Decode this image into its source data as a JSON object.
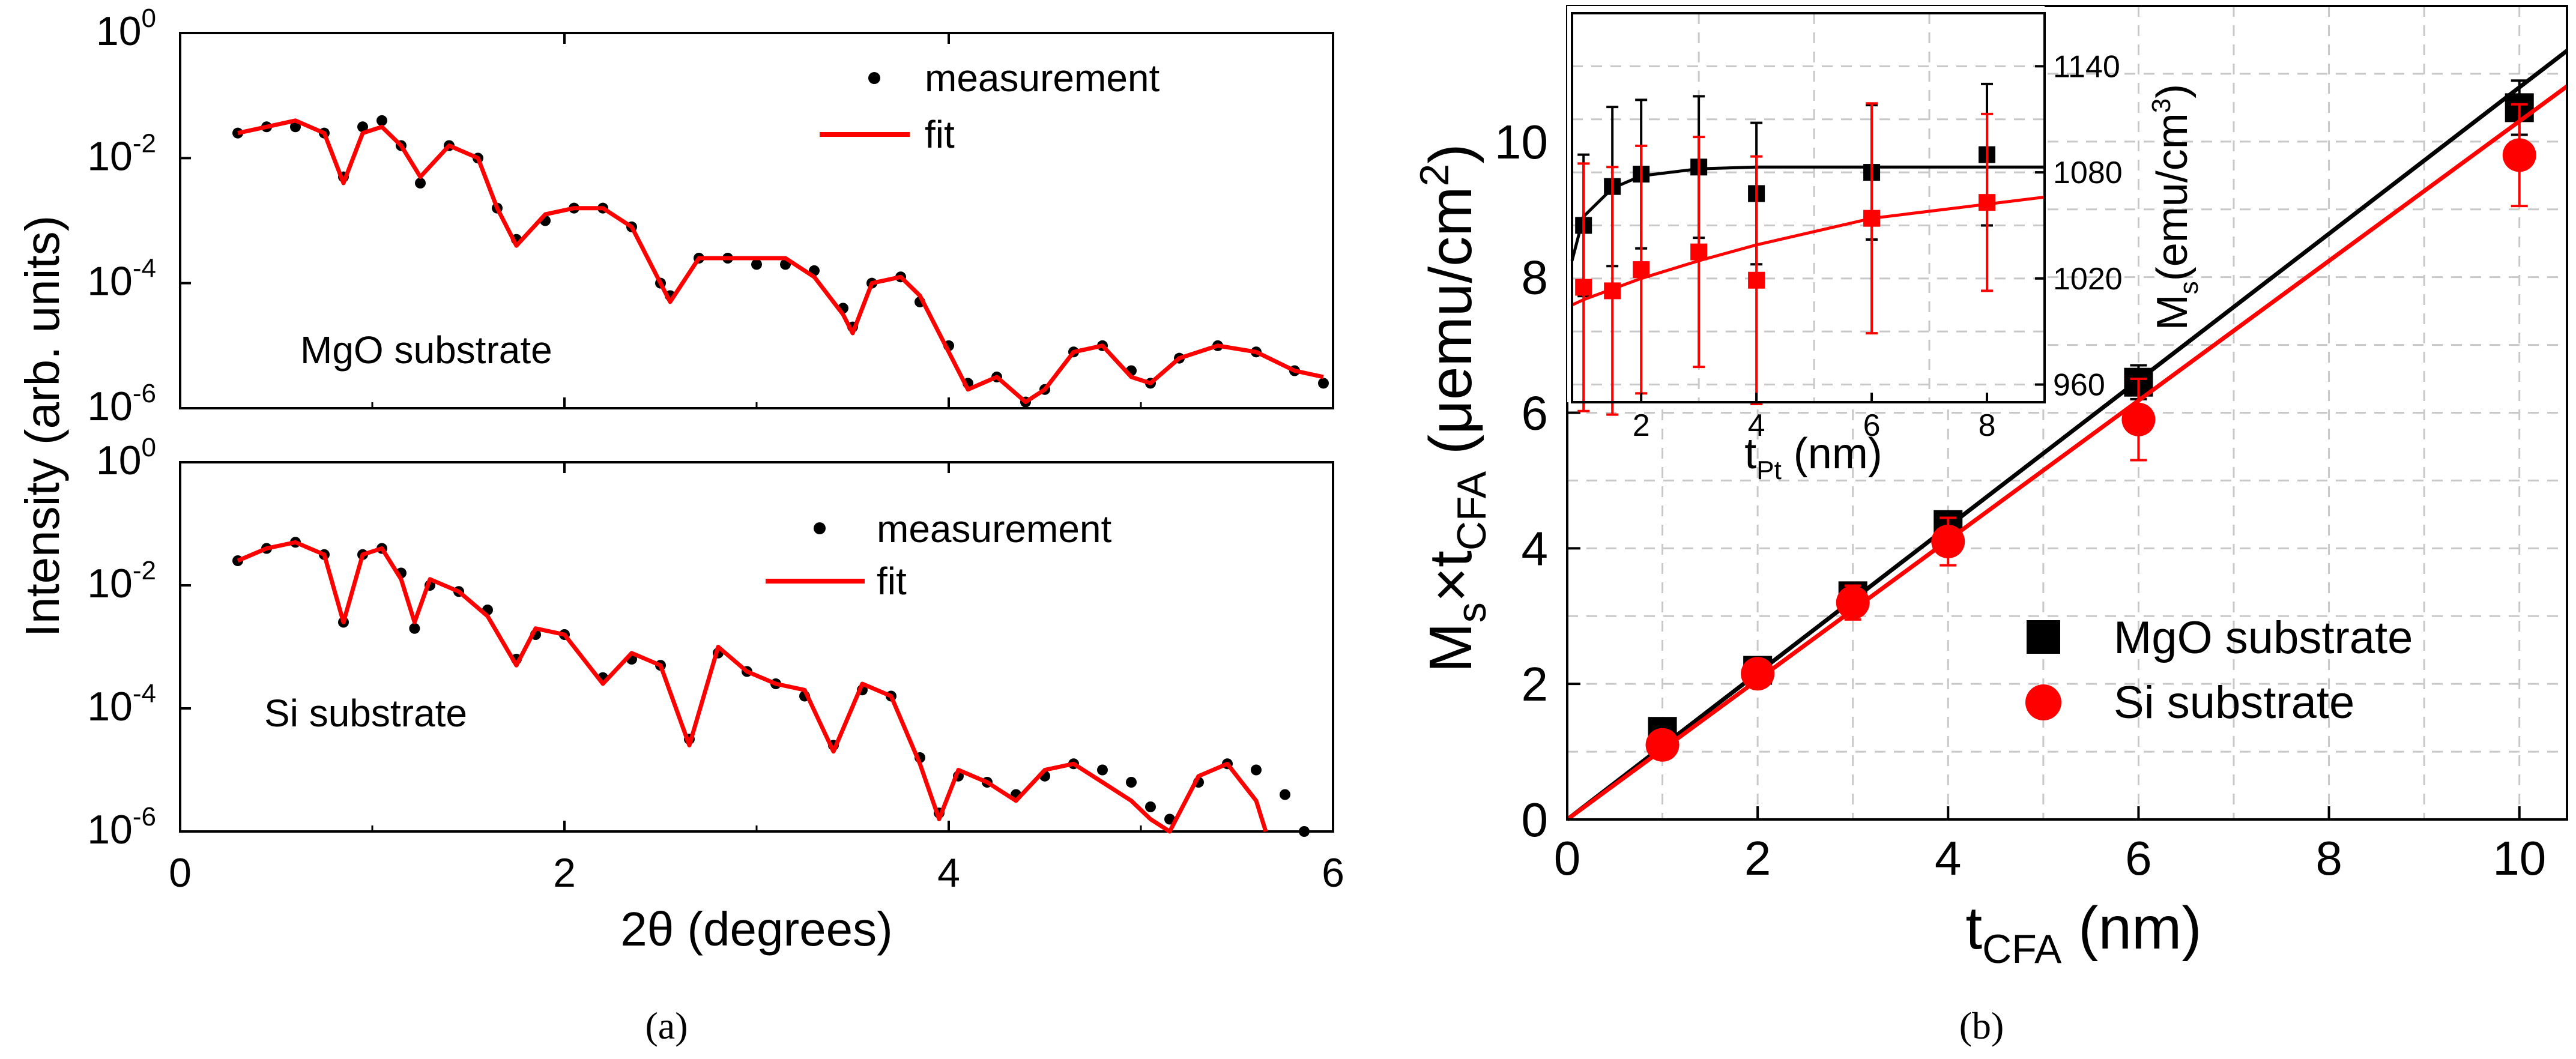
{
  "chart_data": [
    {
      "type": "line",
      "panel": "a-top",
      "title": "",
      "xlabel": "",
      "ylabel": "Intensity (arb. units)",
      "yscale": "log",
      "xlim": [
        0,
        6
      ],
      "ylim_exp": [
        -6,
        0
      ],
      "x_ticks": [
        "0",
        "2",
        "4",
        "6"
      ],
      "y_tick_mantissa": "10",
      "y_tick_exponents": [
        "0",
        "-2",
        "-4",
        "-6"
      ],
      "annotation": "MgO substrate",
      "legend": [
        "measurement",
        "fit"
      ],
      "legend_position": "top-right",
      "series": [
        {
          "name": "measurement",
          "style": "black dots",
          "x": [
            0.3,
            0.45,
            0.6,
            0.75,
            0.85,
            0.95,
            1.05,
            1.15,
            1.25,
            1.4,
            1.55,
            1.65,
            1.75,
            1.9,
            2.05,
            2.2,
            2.35,
            2.5,
            2.55,
            2.7,
            2.85,
            3.0,
            3.15,
            3.3,
            3.45,
            3.5,
            3.6,
            3.75,
            3.85,
            4.0,
            4.1,
            4.25,
            4.4,
            4.5,
            4.65,
            4.8,
            4.95,
            5.05,
            5.2,
            5.4,
            5.6,
            5.8,
            5.95
          ],
          "y_log10": [
            -1.6,
            -1.5,
            -1.5,
            -1.6,
            -2.3,
            -1.5,
            -1.4,
            -1.8,
            -2.4,
            -1.8,
            -2.0,
            -2.8,
            -3.3,
            -3.0,
            -2.8,
            -2.8,
            -3.1,
            -4.0,
            -4.2,
            -3.6,
            -3.6,
            -3.7,
            -3.7,
            -3.8,
            -4.4,
            -4.7,
            -4.0,
            -3.9,
            -4.3,
            -5.0,
            -5.6,
            -5.5,
            -5.9,
            -5.7,
            -5.1,
            -5.0,
            -5.4,
            -5.6,
            -5.2,
            -5.0,
            -5.1,
            -5.4,
            -5.6
          ]
        },
        {
          "name": "fit",
          "style": "red line",
          "x": [
            0.3,
            0.45,
            0.6,
            0.75,
            0.85,
            0.95,
            1.05,
            1.15,
            1.25,
            1.4,
            1.55,
            1.65,
            1.75,
            1.9,
            2.05,
            2.2,
            2.35,
            2.5,
            2.55,
            2.7,
            2.85,
            3.0,
            3.15,
            3.3,
            3.45,
            3.5,
            3.6,
            3.75,
            3.85,
            4.0,
            4.1,
            4.25,
            4.4,
            4.5,
            4.65,
            4.8,
            4.95,
            5.05,
            5.2,
            5.4,
            5.6,
            5.8,
            5.95
          ],
          "y_log10": [
            -1.6,
            -1.5,
            -1.4,
            -1.6,
            -2.4,
            -1.6,
            -1.5,
            -1.8,
            -2.3,
            -1.8,
            -2.0,
            -2.8,
            -3.4,
            -2.9,
            -2.8,
            -2.8,
            -3.1,
            -4.0,
            -4.3,
            -3.6,
            -3.6,
            -3.6,
            -3.6,
            -3.9,
            -4.5,
            -4.8,
            -4.0,
            -3.9,
            -4.2,
            -5.1,
            -5.7,
            -5.5,
            -5.9,
            -5.7,
            -5.1,
            -5.0,
            -5.5,
            -5.6,
            -5.2,
            -5.0,
            -5.1,
            -5.4,
            -5.5
          ]
        }
      ]
    },
    {
      "type": "line",
      "panel": "a-bottom",
      "title": "",
      "xlabel": "2θ (degrees)",
      "ylabel": "Intensity (arb. units)",
      "yscale": "log",
      "xlim": [
        0,
        6
      ],
      "ylim_exp": [
        -6,
        0
      ],
      "x_ticks": [
        "0",
        "2",
        "4",
        "6"
      ],
      "y_tick_mantissa": "10",
      "y_tick_exponents": [
        "0",
        "-2",
        "-4",
        "-6"
      ],
      "annotation": "Si substrate",
      "legend": [
        "measurement",
        "fit"
      ],
      "legend_position": "top-right",
      "series": [
        {
          "name": "measurement",
          "style": "black dots",
          "x": [
            0.3,
            0.45,
            0.6,
            0.75,
            0.85,
            0.95,
            1.05,
            1.15,
            1.22,
            1.3,
            1.45,
            1.6,
            1.75,
            1.85,
            2.0,
            2.2,
            2.35,
            2.5,
            2.65,
            2.8,
            2.95,
            3.1,
            3.25,
            3.4,
            3.55,
            3.7,
            3.85,
            3.95,
            4.05,
            4.2,
            4.35,
            4.5,
            4.65,
            4.8,
            4.95,
            5.05,
            5.15,
            5.3,
            5.45,
            5.6,
            5.75,
            5.85
          ],
          "y_log10": [
            -1.6,
            -1.4,
            -1.3,
            -1.5,
            -2.6,
            -1.5,
            -1.4,
            -1.8,
            -2.7,
            -2.0,
            -2.1,
            -2.4,
            -3.2,
            -2.8,
            -2.8,
            -3.5,
            -3.2,
            -3.3,
            -4.5,
            -3.1,
            -3.4,
            -3.6,
            -3.8,
            -4.6,
            -3.7,
            -3.8,
            -4.8,
            -5.7,
            -5.1,
            -5.2,
            -5.4,
            -5.1,
            -4.9,
            -5.0,
            -5.2,
            -5.6,
            -5.8,
            -5.2,
            -4.9,
            -5.0,
            -5.4,
            -6.0
          ]
        },
        {
          "name": "fit",
          "style": "red line",
          "x": [
            0.3,
            0.45,
            0.6,
            0.75,
            0.85,
            0.95,
            1.05,
            1.15,
            1.22,
            1.3,
            1.45,
            1.6,
            1.75,
            1.85,
            2.0,
            2.2,
            2.35,
            2.5,
            2.65,
            2.8,
            2.95,
            3.1,
            3.25,
            3.4,
            3.55,
            3.7,
            3.85,
            3.95,
            4.05,
            4.2,
            4.35,
            4.5,
            4.65,
            4.8,
            4.95,
            5.05,
            5.15,
            5.3,
            5.45,
            5.6,
            5.65
          ],
          "y_log10": [
            -1.6,
            -1.4,
            -1.3,
            -1.5,
            -2.6,
            -1.5,
            -1.4,
            -1.9,
            -2.6,
            -1.9,
            -2.1,
            -2.5,
            -3.3,
            -2.7,
            -2.8,
            -3.6,
            -3.1,
            -3.3,
            -4.6,
            -3.0,
            -3.4,
            -3.6,
            -3.7,
            -4.7,
            -3.6,
            -3.8,
            -4.9,
            -5.8,
            -5.0,
            -5.2,
            -5.5,
            -5.0,
            -4.9,
            -5.2,
            -5.5,
            -5.8,
            -6.0,
            -5.1,
            -4.9,
            -5.5,
            -6.0
          ]
        }
      ]
    },
    {
      "type": "scatter",
      "panel": "b",
      "title": "",
      "xlabel_main": "t",
      "xlabel_sub": "CFA",
      "xlabel_unit": " (nm)",
      "ylabel": "M",
      "ylabel_sub1": "s",
      "ylabel_mid": "×t",
      "ylabel_sub2": "CFA",
      "ylabel_unit": " (μemu/cm",
      "ylabel_sup": "2",
      "ylabel_close": ")",
      "xlim": [
        0,
        10.5
      ],
      "ylim": [
        0,
        12
      ],
      "x_ticks": [
        "0",
        "2",
        "4",
        "6",
        "8",
        "10"
      ],
      "y_ticks": [
        "0",
        "2",
        "4",
        "6",
        "8",
        "10"
      ],
      "grid": true,
      "legend": [
        "MgO substrate",
        "Si substrate"
      ],
      "legend_position": "bottom-right",
      "series": [
        {
          "name": "MgO substrate",
          "marker": "square",
          "color": "#000000",
          "x": [
            1,
            2,
            3,
            4,
            6,
            10
          ],
          "y": [
            1.3,
            2.2,
            3.3,
            4.35,
            6.45,
            10.5
          ],
          "err": [
            0.1,
            0.1,
            0.15,
            0.15,
            0.25,
            0.4
          ],
          "fit_slope": 1.08
        },
        {
          "name": "Si substrate",
          "marker": "circle",
          "color": "#ff0000",
          "x": [
            1,
            2,
            3,
            4,
            6,
            10
          ],
          "y": [
            1.1,
            2.15,
            3.2,
            4.1,
            5.9,
            9.8
          ],
          "err": [
            0.1,
            0.1,
            0.25,
            0.35,
            0.6,
            0.75
          ],
          "fit_slope": 1.03
        }
      ]
    },
    {
      "type": "scatter",
      "panel": "b-inset",
      "xlabel_main": "t",
      "xlabel_sub": "Pt",
      "xlabel_unit": " (nm)",
      "ylabel_main": "M",
      "ylabel_sub": "s",
      "ylabel_unit": "(emu/cm",
      "ylabel_sup": "3",
      "ylabel_close": ")",
      "xlim": [
        0.8,
        9
      ],
      "ylim": [
        950,
        1170
      ],
      "x_ticks": [
        "2",
        "4",
        "6",
        "8"
      ],
      "y_ticks": [
        "960",
        "1020",
        "1080",
        "1140"
      ],
      "series": [
        {
          "name": "MgO substrate",
          "marker": "square",
          "color": "#000000",
          "x": [
            1,
            1.5,
            2,
            3,
            4,
            6,
            8
          ],
          "y": [
            1050,
            1072,
            1079,
            1083,
            1068,
            1080,
            1090
          ],
          "err": [
            40,
            45,
            42,
            40,
            40,
            38,
            40
          ],
          "fit": {
            "x": [
              0.8,
              1,
              1.5,
              2,
              3,
              4,
              6,
              8,
              9
            ],
            "y": [
              1030,
              1055,
              1071,
              1078,
              1082,
              1083,
              1083,
              1083,
              1083
            ]
          }
        },
        {
          "name": "Si substrate",
          "marker": "square",
          "color": "#ff0000",
          "x": [
            1,
            1.5,
            2,
            3,
            4,
            6,
            8
          ],
          "y": [
            1015,
            1013,
            1025,
            1035,
            1019,
            1054,
            1063
          ],
          "err": [
            70,
            70,
            70,
            65,
            70,
            65,
            50
          ],
          "fit": {
            "x": [
              0.8,
              1,
              1.5,
              2,
              3,
              4,
              6,
              8,
              9
            ],
            "y": [
              1005,
              1008,
              1014,
              1020,
              1030,
              1039,
              1054,
              1062,
              1066
            ]
          }
        }
      ]
    }
  ],
  "captions": {
    "a": "(a)",
    "b": "(b)"
  }
}
